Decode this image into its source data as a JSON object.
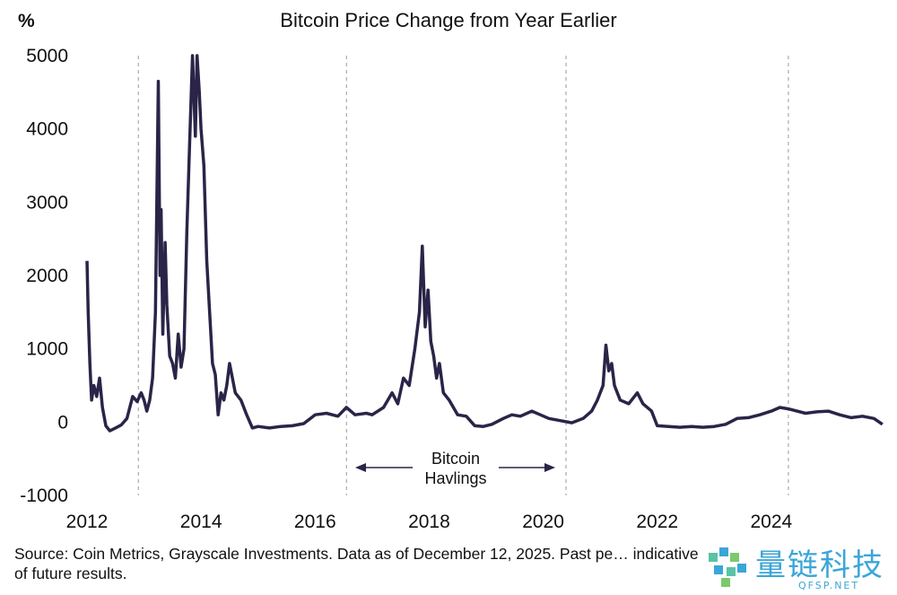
{
  "chart_data": {
    "type": "line",
    "title": "Bitcoin Price Change from Year Earlier",
    "y_unit": "%",
    "xlabel": "",
    "ylabel": "",
    "xlim": [
      2012,
      2026
    ],
    "ylim": [
      -1000,
      5000
    ],
    "x_ticks": [
      "2012",
      "2014",
      "2016",
      "2018",
      "2020",
      "2022",
      "2024"
    ],
    "y_ticks": [
      "5000",
      "4000",
      "3000",
      "2000",
      "1000",
      "0",
      "-1000"
    ],
    "halving_dates": [
      2012.9,
      2016.55,
      2020.4,
      2024.3
    ],
    "annotation": {
      "line1": "Bitcoin",
      "line2": "Havlings"
    },
    "line_color": "#2b2448",
    "series": [
      {
        "name": "",
        "points": [
          [
            2012.0,
            2200
          ],
          [
            2012.02,
            1500
          ],
          [
            2012.05,
            800
          ],
          [
            2012.08,
            300
          ],
          [
            2012.12,
            500
          ],
          [
            2012.17,
            350
          ],
          [
            2012.22,
            600
          ],
          [
            2012.27,
            200
          ],
          [
            2012.33,
            -50
          ],
          [
            2012.4,
            -120
          ],
          [
            2012.5,
            -80
          ],
          [
            2012.6,
            -40
          ],
          [
            2012.7,
            50
          ],
          [
            2012.8,
            350
          ],
          [
            2012.88,
            280
          ],
          [
            2012.95,
            400
          ],
          [
            2013.0,
            300
          ],
          [
            2013.05,
            150
          ],
          [
            2013.1,
            300
          ],
          [
            2013.15,
            600
          ],
          [
            2013.2,
            1500
          ],
          [
            2013.25,
            4650
          ],
          [
            2013.28,
            2000
          ],
          [
            2013.3,
            2900
          ],
          [
            2013.33,
            1200
          ],
          [
            2013.37,
            2450
          ],
          [
            2013.4,
            1600
          ],
          [
            2013.45,
            900
          ],
          [
            2013.5,
            800
          ],
          [
            2013.55,
            600
          ],
          [
            2013.6,
            1200
          ],
          [
            2013.65,
            750
          ],
          [
            2013.7,
            1000
          ],
          [
            2013.75,
            2600
          ],
          [
            2013.8,
            3800
          ],
          [
            2013.85,
            5000
          ],
          [
            2013.9,
            3900
          ],
          [
            2013.93,
            5000
          ],
          [
            2013.97,
            4500
          ],
          [
            2014.0,
            4000
          ],
          [
            2014.05,
            3500
          ],
          [
            2014.1,
            2200
          ],
          [
            2014.15,
            1500
          ],
          [
            2014.2,
            800
          ],
          [
            2014.25,
            650
          ],
          [
            2014.3,
            100
          ],
          [
            2014.35,
            400
          ],
          [
            2014.4,
            300
          ],
          [
            2014.45,
            500
          ],
          [
            2014.5,
            800
          ],
          [
            2014.55,
            600
          ],
          [
            2014.6,
            400
          ],
          [
            2014.7,
            300
          ],
          [
            2014.8,
            100
          ],
          [
            2014.9,
            -80
          ],
          [
            2015.0,
            -60
          ],
          [
            2015.2,
            -80
          ],
          [
            2015.4,
            -60
          ],
          [
            2015.6,
            -50
          ],
          [
            2015.8,
            -20
          ],
          [
            2016.0,
            100
          ],
          [
            2016.2,
            120
          ],
          [
            2016.4,
            80
          ],
          [
            2016.55,
            200
          ],
          [
            2016.7,
            100
          ],
          [
            2016.9,
            120
          ],
          [
            2017.0,
            100
          ],
          [
            2017.2,
            200
          ],
          [
            2017.35,
            400
          ],
          [
            2017.45,
            250
          ],
          [
            2017.55,
            600
          ],
          [
            2017.65,
            500
          ],
          [
            2017.75,
            1000
          ],
          [
            2017.83,
            1500
          ],
          [
            2017.88,
            2400
          ],
          [
            2017.93,
            1300
          ],
          [
            2017.98,
            1800
          ],
          [
            2018.03,
            1100
          ],
          [
            2018.08,
            900
          ],
          [
            2018.13,
            600
          ],
          [
            2018.18,
            800
          ],
          [
            2018.25,
            400
          ],
          [
            2018.35,
            300
          ],
          [
            2018.5,
            100
          ],
          [
            2018.65,
            80
          ],
          [
            2018.8,
            -50
          ],
          [
            2018.95,
            -60
          ],
          [
            2019.1,
            -30
          ],
          [
            2019.3,
            50
          ],
          [
            2019.45,
            100
          ],
          [
            2019.6,
            80
          ],
          [
            2019.8,
            150
          ],
          [
            2019.95,
            100
          ],
          [
            2020.1,
            50
          ],
          [
            2020.3,
            20
          ],
          [
            2020.5,
            -10
          ],
          [
            2020.7,
            50
          ],
          [
            2020.85,
            150
          ],
          [
            2020.95,
            300
          ],
          [
            2021.05,
            500
          ],
          [
            2021.1,
            1050
          ],
          [
            2021.15,
            700
          ],
          [
            2021.2,
            800
          ],
          [
            2021.25,
            500
          ],
          [
            2021.35,
            300
          ],
          [
            2021.5,
            250
          ],
          [
            2021.65,
            400
          ],
          [
            2021.75,
            250
          ],
          [
            2021.9,
            150
          ],
          [
            2022.0,
            -50
          ],
          [
            2022.2,
            -60
          ],
          [
            2022.4,
            -70
          ],
          [
            2022.6,
            -60
          ],
          [
            2022.8,
            -70
          ],
          [
            2023.0,
            -60
          ],
          [
            2023.2,
            -30
          ],
          [
            2023.4,
            50
          ],
          [
            2023.6,
            60
          ],
          [
            2023.8,
            100
          ],
          [
            2024.0,
            150
          ],
          [
            2024.15,
            200
          ],
          [
            2024.3,
            180
          ],
          [
            2024.45,
            150
          ],
          [
            2024.6,
            120
          ],
          [
            2024.8,
            140
          ],
          [
            2025.0,
            150
          ],
          [
            2025.2,
            100
          ],
          [
            2025.4,
            60
          ],
          [
            2025.6,
            80
          ],
          [
            2025.8,
            50
          ],
          [
            2025.95,
            -30
          ]
        ]
      }
    ]
  },
  "source": "Source: Coin Metrics, Grayscale Investments. Data as of December 12, 2025. Past pe… indicative of future results.",
  "watermark": {
    "text": "量链科技",
    "sub": "QFSP.NET"
  }
}
